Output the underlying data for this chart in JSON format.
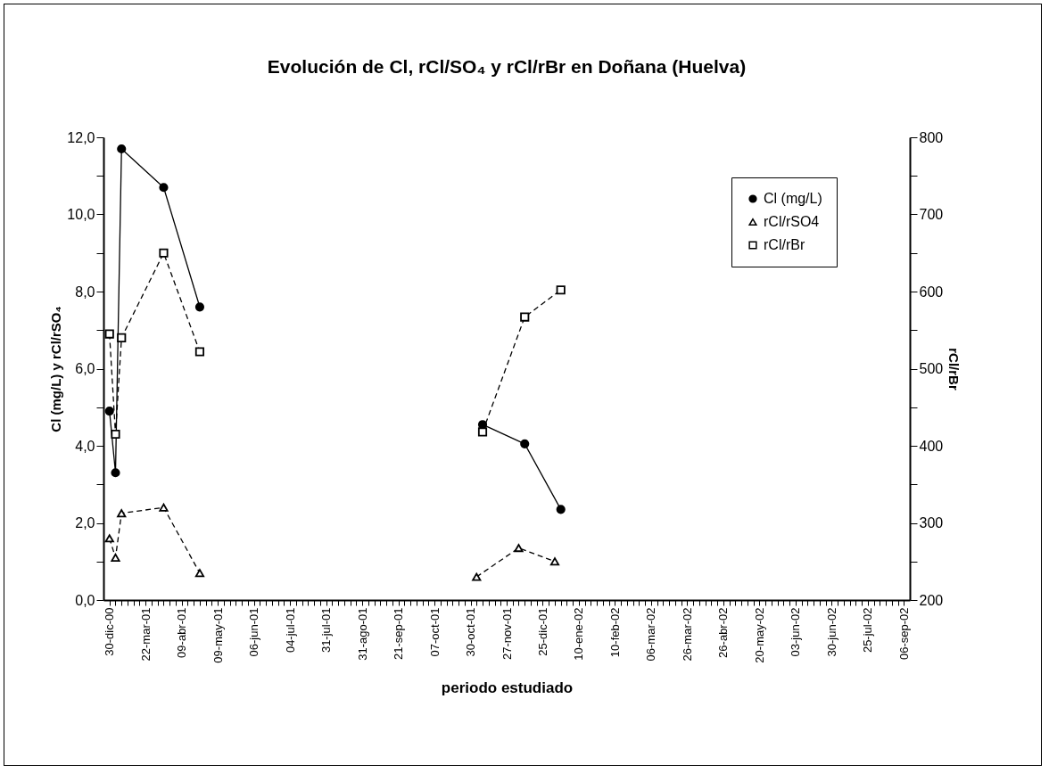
{
  "chart_data": {
    "type": "line",
    "title": "Evolución de Cl, rCl/SO₄ y rCl/rBr en Doñana (Huelva)",
    "xlabel": "periodo estudiado",
    "ylabel": "Cl (mg/L) y rCl/rSO₄",
    "y2label": "rCl/rBr",
    "categories": [
      "30-dic-00",
      null,
      null,
      null,
      null,
      null,
      "22-mar-01",
      null,
      null,
      null,
      null,
      null,
      "09-abr-01",
      null,
      null,
      null,
      null,
      null,
      "09-may-01",
      null,
      null,
      null,
      null,
      null,
      "06-jun-01",
      null,
      null,
      null,
      null,
      null,
      "04-jul-01",
      null,
      null,
      null,
      null,
      null,
      "31-jul-01",
      null,
      null,
      null,
      null,
      null,
      "31-ago-01",
      null,
      null,
      null,
      null,
      null,
      "21-sep-01",
      null,
      null,
      null,
      null,
      null,
      "07-oct-01",
      null,
      null,
      null,
      null,
      null,
      "30-oct-01",
      null,
      null,
      null,
      null,
      null,
      "27-nov-01",
      null,
      null,
      null,
      null,
      null,
      "25-dic-01",
      null,
      null,
      null,
      null,
      null,
      "10-ene-02",
      null,
      null,
      null,
      null,
      null,
      "10-feb-02",
      null,
      null,
      null,
      null,
      null,
      "06-mar-02",
      null,
      null,
      null,
      null,
      null,
      "26-mar-02",
      null,
      null,
      null,
      null,
      null,
      "26-abr-02",
      null,
      null,
      null,
      null,
      null,
      "20-may-02",
      null,
      null,
      null,
      null,
      null,
      "03-jun-02",
      null,
      null,
      null,
      null,
      null,
      "30-jun-02",
      null,
      null,
      null,
      null,
      null,
      "25-jul-02",
      null,
      null,
      null,
      null,
      null,
      "06-sep-02"
    ],
    "series": [
      {
        "name": "Cl (mg/L)",
        "color": "#000000",
        "marker": "circle",
        "line_style": "solid",
        "values": [
          4.9,
          3.3,
          11.7,
          null,
          null,
          null,
          null,
          null,
          null,
          10.7,
          null,
          null,
          null,
          null,
          null,
          7.6,
          null,
          null,
          null,
          null,
          null,
          null,
          null,
          null,
          null,
          null,
          null,
          null,
          null,
          null,
          null,
          null,
          null,
          null,
          null,
          null,
          null,
          null,
          null,
          null,
          null,
          null,
          null,
          null,
          null,
          null,
          null,
          null,
          null,
          null,
          null,
          null,
          null,
          null,
          null,
          null,
          null,
          null,
          null,
          null,
          null,
          null,
          null,
          null,
          null,
          null,
          null,
          null,
          null,
          null,
          null,
          null,
          null,
          null,
          null,
          null,
          null,
          null,
          null,
          null,
          null,
          null,
          null,
          null,
          null,
          null,
          null,
          null,
          null,
          null,
          null,
          null,
          null,
          null,
          null,
          null,
          null,
          null,
          null,
          null,
          null,
          null,
          null,
          null,
          null,
          null,
          null,
          null,
          null,
          null,
          null,
          null,
          null,
          null,
          null,
          null,
          null,
          null,
          null,
          null,
          null,
          null,
          null,
          null,
          null,
          null,
          null,
          null,
          null,
          null,
          null,
          null,
          null
        ]
      },
      {
        "color": "#000000",
        "marker": "circle",
        "line_style": "solid",
        "values": [
          null,
          null,
          null,
          null,
          null,
          null,
          null,
          null,
          null,
          null,
          null,
          null,
          null,
          null,
          null,
          null,
          null,
          null,
          null,
          null,
          null,
          null,
          null,
          null,
          null,
          null,
          null,
          null,
          null,
          null,
          null,
          null,
          null,
          null,
          null,
          null,
          null,
          null,
          null,
          null,
          null,
          null,
          null,
          null,
          null,
          null,
          null,
          null,
          null,
          null,
          null,
          null,
          null,
          null,
          null,
          null,
          null,
          null,
          null,
          null,
          null,
          null,
          4.55,
          null,
          null,
          null,
          null,
          null,
          null,
          4.05,
          null,
          null,
          null,
          null,
          null,
          2.35,
          null,
          null,
          null,
          null,
          null,
          null,
          null,
          null,
          null,
          null,
          null,
          null,
          null,
          null,
          null,
          null,
          null,
          null,
          null,
          null,
          null,
          null,
          null,
          null,
          null,
          null,
          null,
          null,
          null,
          null,
          null,
          null,
          null,
          null,
          null,
          null,
          null,
          null,
          null,
          null,
          null,
          null,
          null,
          null,
          null,
          null,
          null,
          null,
          null,
          null,
          null,
          null,
          null,
          null,
          null,
          null,
          null
        ]
      },
      {
        "name": "rCl/rSO4",
        "color": "#000000",
        "marker": "triangle",
        "line_style": "dashed",
        "values": [
          1.6,
          1.1,
          2.25,
          null,
          null,
          null,
          null,
          null,
          null,
          2.4,
          null,
          null,
          null,
          null,
          null,
          0.7,
          null,
          null,
          null,
          null,
          null,
          null,
          null,
          null,
          null,
          null,
          null,
          null,
          null,
          null,
          null,
          null,
          null,
          null,
          null,
          null,
          null,
          null,
          null,
          null,
          null,
          null,
          null,
          null,
          null,
          null,
          null,
          null,
          null,
          null,
          null,
          null,
          null,
          null,
          null,
          null,
          null,
          null,
          null,
          null,
          null,
          null,
          null,
          null,
          null,
          null,
          null,
          null,
          null,
          null,
          null,
          null,
          null,
          null,
          null,
          null,
          null,
          null,
          null,
          null,
          null,
          null,
          null,
          null,
          null,
          null,
          null,
          null,
          null,
          null,
          null,
          null,
          null,
          null,
          null,
          null,
          null,
          null,
          null,
          null,
          null,
          null,
          null,
          null,
          null,
          null,
          null,
          null,
          null,
          null,
          null,
          null,
          null,
          null,
          null,
          null,
          null,
          null,
          null,
          null,
          null,
          null,
          null,
          null,
          null,
          null,
          null,
          null,
          null,
          null,
          null,
          null,
          null
        ]
      },
      {
        "color": "#000000",
        "marker": "triangle",
        "line_style": "dashed",
        "values": [
          null,
          null,
          null,
          null,
          null,
          null,
          null,
          null,
          null,
          null,
          null,
          null,
          null,
          null,
          null,
          null,
          null,
          null,
          null,
          null,
          null,
          null,
          null,
          null,
          null,
          null,
          null,
          null,
          null,
          null,
          null,
          null,
          null,
          null,
          null,
          null,
          null,
          null,
          null,
          null,
          null,
          null,
          null,
          null,
          null,
          null,
          null,
          null,
          null,
          null,
          null,
          null,
          null,
          null,
          null,
          null,
          null,
          null,
          null,
          null,
          null,
          0.6,
          null,
          null,
          null,
          null,
          null,
          null,
          1.35,
          null,
          null,
          null,
          null,
          null,
          1.0,
          null,
          null,
          null,
          null,
          null,
          null,
          null,
          null,
          null,
          null,
          null,
          null,
          null,
          null,
          null,
          null,
          null,
          null,
          null,
          null,
          null,
          null,
          null,
          null,
          null,
          null,
          null,
          null,
          null,
          null,
          null,
          null,
          null,
          null,
          null,
          null,
          null,
          null,
          null,
          null,
          null,
          null,
          null,
          null,
          null,
          null,
          null,
          null,
          null,
          null,
          null,
          null,
          null,
          null,
          null,
          null,
          null,
          null
        ]
      },
      {
        "name": "rCl/rBr",
        "color": "#000000",
        "marker": "square",
        "line_style": "dashed",
        "axis": "y2",
        "values": [
          545,
          415,
          540,
          null,
          null,
          null,
          null,
          null,
          null,
          650,
          null,
          null,
          null,
          null,
          null,
          522,
          null,
          null,
          null,
          null,
          null,
          null,
          null,
          null,
          null,
          null,
          null,
          null,
          null,
          null,
          null,
          null,
          null,
          null,
          null,
          null,
          null,
          null,
          null,
          null,
          null,
          null,
          null,
          null,
          null,
          null,
          null,
          null,
          null,
          null,
          null,
          null,
          null,
          null,
          null,
          null,
          null,
          null,
          null,
          null,
          null,
          null,
          null,
          null,
          null,
          null,
          null,
          null,
          null,
          null,
          null,
          null,
          null,
          null,
          null,
          null,
          null,
          null,
          null,
          null,
          null,
          null,
          null,
          null,
          null,
          null,
          null,
          null,
          null,
          null,
          null,
          null,
          null,
          null,
          null,
          null,
          null,
          null,
          null,
          null,
          null,
          null,
          null,
          null,
          null,
          null,
          null,
          null,
          null,
          null,
          null,
          null,
          null,
          null,
          null,
          null,
          null,
          null,
          null,
          null,
          null,
          null,
          null,
          null,
          null,
          null,
          null,
          null,
          null,
          null,
          null,
          null,
          null
        ]
      },
      {
        "color": "#000000",
        "marker": "square",
        "line_style": "dashed",
        "axis": "y2",
        "values": [
          null,
          null,
          null,
          null,
          null,
          null,
          null,
          null,
          null,
          null,
          null,
          null,
          null,
          null,
          null,
          null,
          null,
          null,
          null,
          null,
          null,
          null,
          null,
          null,
          null,
          null,
          null,
          null,
          null,
          null,
          null,
          null,
          null,
          null,
          null,
          null,
          null,
          null,
          null,
          null,
          null,
          null,
          null,
          null,
          null,
          null,
          null,
          null,
          null,
          null,
          null,
          null,
          null,
          null,
          null,
          null,
          null,
          null,
          null,
          null,
          null,
          null,
          418,
          null,
          null,
          null,
          null,
          null,
          null,
          567,
          null,
          null,
          null,
          null,
          null,
          602,
          null,
          null,
          null,
          null,
          null,
          null,
          null,
          null,
          null,
          null,
          null,
          null,
          null,
          null,
          null,
          null,
          null,
          null,
          null,
          null,
          null,
          null,
          null,
          null,
          null,
          null,
          null,
          null,
          null,
          null,
          null,
          null,
          null,
          null,
          null,
          null,
          null,
          null,
          null,
          null,
          null,
          null,
          null,
          null,
          null,
          null,
          null,
          null,
          null,
          null,
          null,
          null,
          null,
          null,
          null,
          null,
          null
        ]
      }
    ],
    "ylim": [
      0,
      12
    ],
    "yticks": [
      {
        "value": 0,
        "label": "0,0"
      },
      {
        "value": 1,
        "label": null
      },
      {
        "value": 2,
        "label": "2,0"
      },
      {
        "value": 3,
        "label": null
      },
      {
        "value": 4,
        "label": "4,0"
      },
      {
        "value": 5,
        "label": null
      },
      {
        "value": 6,
        "label": "6,0"
      },
      {
        "value": 7,
        "label": null
      },
      {
        "value": 8,
        "label": "8,0"
      },
      {
        "value": 9,
        "label": null
      },
      {
        "value": 10,
        "label": "10,0"
      },
      {
        "value": 11,
        "label": null
      },
      {
        "value": 12,
        "label": "12,0"
      }
    ],
    "y2lim": [
      200,
      800
    ],
    "y2ticks": [
      200,
      {
        "value": 250,
        "label": null
      },
      300,
      {
        "value": 350,
        "label": null
      },
      400,
      {
        "value": 450,
        "label": null
      },
      500,
      {
        "value": 550,
        "label": null
      },
      600,
      {
        "value": 650,
        "label": null
      },
      700,
      {
        "value": 750,
        "label": null
      },
      800
    ],
    "grid": false,
    "legend": "top right"
  }
}
